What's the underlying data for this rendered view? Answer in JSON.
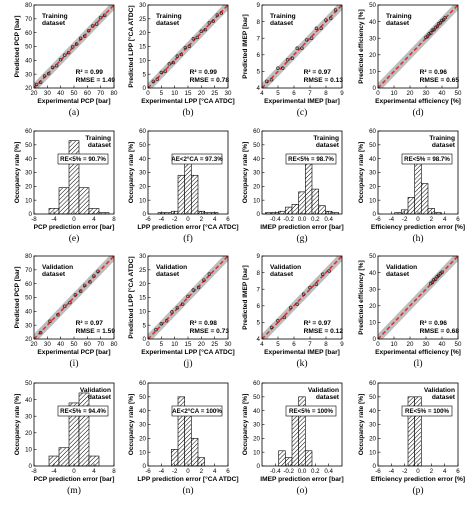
{
  "figure": {
    "labels": [
      "(a)",
      "(b)",
      "(c)",
      "(d)",
      "(e)",
      "(f)",
      "(g)",
      "(h)",
      "(i)",
      "(j)",
      "(k)",
      "(l)",
      "(m)",
      "(n)",
      "(o)",
      "(p)"
    ]
  },
  "colors": {
    "identity_line": "#e03030",
    "band": "#bdbdbd",
    "points": "#222222",
    "hatch": "#000000"
  },
  "chart_data": [
    {
      "id": "a",
      "type": "scatter",
      "xlabel": "Experimental PCP [bar]",
      "ylabel": "Predicted PCP [bar]",
      "xlim": [
        20,
        80
      ],
      "ylim": [
        20,
        80
      ],
      "ticks": [
        20,
        30,
        40,
        50,
        60,
        70,
        80
      ],
      "annotation": [
        "Training",
        "dataset"
      ],
      "stats": [
        "R² = 0.99",
        "RMSE = 1.49"
      ],
      "points": {
        "x": [
          22,
          25,
          28,
          31,
          34,
          37,
          40,
          43,
          46,
          49,
          52,
          55,
          58,
          61,
          64,
          67,
          70,
          73
        ],
        "y": [
          22.5,
          24.2,
          28.8,
          30.4,
          34.9,
          36.2,
          40.5,
          43.8,
          45.6,
          49.7,
          51.8,
          55.9,
          57.5,
          61.4,
          64.8,
          66.3,
          70.9,
          72.6
        ]
      },
      "identity": true
    },
    {
      "id": "b",
      "type": "scatter",
      "xlabel": "Experimental LPP [°CA ATDC]",
      "ylabel": "Predicted LPP [°CA ATDC]",
      "xlim": [
        0,
        30
      ],
      "ylim": [
        0,
        30
      ],
      "ticks": [
        0,
        5,
        10,
        15,
        20,
        25,
        30
      ],
      "annotation": [
        "Training",
        "dataset"
      ],
      "stats": [
        "R² = 0.99",
        "RMSE = 0.78"
      ],
      "points": {
        "x": [
          2,
          3.5,
          5,
          6.5,
          8,
          9.5,
          11,
          12.5,
          14,
          15.5,
          17,
          18.5,
          20,
          21.5,
          23,
          24.5,
          26,
          27.5
        ],
        "y": [
          2.4,
          3.2,
          5.6,
          6.1,
          8.7,
          9.2,
          11.5,
          12.1,
          14.6,
          15.1,
          17.8,
          18.3,
          20.5,
          21.1,
          23.6,
          24.2,
          26.4,
          27.1
        ]
      },
      "identity": true
    },
    {
      "id": "c",
      "type": "scatter",
      "xlabel": "Experimental IMEP [bar]",
      "ylabel": "Predicted IMEP [bar]",
      "xlim": [
        4,
        9
      ],
      "ylim": [
        4,
        9
      ],
      "ticks": [
        4,
        5,
        6,
        7,
        8,
        9
      ],
      "annotation": [
        "Training",
        "dataset"
      ],
      "stats": [
        "R² = 0.97",
        "RMSE = 0.13"
      ],
      "points": {
        "x": [
          4.3,
          4.6,
          5,
          5.3,
          5.6,
          5.9,
          6.2,
          6.5,
          6.8,
          7.1,
          7.4,
          7.7,
          8,
          8.3,
          8.6
        ],
        "y": [
          4.4,
          4.5,
          5.2,
          5.2,
          5.7,
          5.8,
          6.4,
          6.4,
          6.9,
          7,
          7.6,
          7.6,
          8.1,
          8.2,
          8.7
        ]
      },
      "identity": true
    },
    {
      "id": "d",
      "type": "scatter",
      "xlabel": "Experimental efficiency [%]",
      "ylabel": "Predicted efficiency [%]",
      "xlim": [
        0,
        50
      ],
      "ylim": [
        0,
        50
      ],
      "ticks": [
        0,
        10,
        20,
        30,
        40,
        50
      ],
      "annotation": [
        "Training",
        "dataset"
      ],
      "stats": [
        "R² = 0.96",
        "RMSE = 0.65"
      ],
      "points": {
        "x": [
          30,
          31,
          32,
          33,
          34,
          35,
          36,
          37,
          38,
          39,
          40,
          41,
          42
        ],
        "y": [
          30.5,
          31.2,
          32.6,
          33.1,
          34.8,
          35.2,
          36.4,
          37.1,
          38.7,
          39.3,
          40.6,
          41.2,
          42.4
        ]
      },
      "identity": true
    },
    {
      "id": "e",
      "type": "bar",
      "xlabel": "PCP prediction error [bar]",
      "ylabel": "Occupancy rate [%]",
      "xlim": [
        -8,
        8
      ],
      "ylim": [
        0,
        60
      ],
      "xticks": [
        -8,
        -4,
        0,
        4,
        8
      ],
      "yticks": [
        0,
        10,
        20,
        30,
        40,
        50,
        60
      ],
      "annotation": [
        "Training",
        "dataset"
      ],
      "stats": [
        "RE<5% = 90.7%"
      ],
      "bin_centers": [
        -6,
        -4,
        -2,
        0,
        2,
        4,
        6
      ],
      "values": [
        0,
        4,
        19,
        53,
        19,
        4,
        1
      ]
    },
    {
      "id": "f",
      "type": "bar",
      "xlabel": "LPP prediction error [°CA ATDC]",
      "ylabel": "Occupancy rate [%]",
      "xlim": [
        -6,
        6
      ],
      "ylim": [
        0,
        60
      ],
      "xticks": [
        -6,
        -4,
        -2,
        0,
        2,
        4,
        6
      ],
      "yticks": [
        0,
        10,
        20,
        30,
        40,
        50,
        60
      ],
      "annotation": [],
      "stats": [
        "AE<2°CA = 97.3%"
      ],
      "bin_centers": [
        -4,
        -3,
        -2,
        -1,
        0,
        1,
        2,
        3,
        4
      ],
      "values": [
        1,
        1,
        2,
        28,
        38,
        28,
        2,
        1,
        1
      ]
    },
    {
      "id": "g",
      "type": "bar",
      "xlabel": "IMEP prediction error [bar]",
      "ylabel": "Occupancy rate [%]",
      "xlim": [
        -0.6,
        0.6
      ],
      "ylim": [
        0,
        60
      ],
      "xticks": [
        -0.4,
        -0.2,
        0.0,
        0.2,
        0.4
      ],
      "yticks": [
        0,
        10,
        20,
        30,
        40,
        50,
        60
      ],
      "annotation": [
        "Training",
        "dataset"
      ],
      "stats": [
        "RE<5% = 98.7%"
      ],
      "bin_centers": [
        -0.5,
        -0.4,
        -0.3,
        -0.2,
        -0.1,
        0.0,
        0.1,
        0.2,
        0.3,
        0.4,
        0.5
      ],
      "values": [
        1,
        1,
        2,
        5,
        7,
        16,
        40,
        18,
        6,
        2,
        1
      ]
    },
    {
      "id": "h",
      "type": "bar",
      "xlabel": "Efficiency prediction error [%]",
      "ylabel": "Occupancy rate [%]",
      "xlim": [
        -6,
        6
      ],
      "ylim": [
        0,
        60
      ],
      "xticks": [
        -6,
        -4,
        -2,
        0,
        2,
        4,
        6
      ],
      "yticks": [
        0,
        10,
        20,
        30,
        40,
        50,
        60
      ],
      "annotation": [
        "Training",
        "dataset"
      ],
      "stats": [
        "RE<5% = 98.7%"
      ],
      "bin_centers": [
        -3,
        -2,
        -1,
        0,
        1,
        2,
        3
      ],
      "values": [
        1,
        3,
        12,
        39,
        22,
        4,
        1
      ]
    },
    {
      "id": "i",
      "type": "scatter",
      "xlabel": "Experimental PCP [bar]",
      "ylabel": "Predicted PCP [bar]",
      "xlim": [
        20,
        80
      ],
      "ylim": [
        20,
        80
      ],
      "ticks": [
        20,
        30,
        40,
        50,
        60,
        70,
        80
      ],
      "annotation": [
        "Validation",
        "dataset"
      ],
      "stats": [
        "R² = 0.97",
        "RMSE = 1.59"
      ],
      "points": {
        "x": [
          25,
          32,
          38,
          43,
          47,
          51,
          55,
          58,
          62,
          65,
          68
        ],
        "y": [
          24.6,
          32.8,
          37.5,
          43.7,
          46.3,
          51.9,
          54.6,
          58.8,
          61.3,
          65.5,
          68.9
        ]
      },
      "identity": true
    },
    {
      "id": "j",
      "type": "scatter",
      "xlabel": "Experimental LPP [°CA ATDC]",
      "ylabel": "Predicted LPP [°CA ATDC]",
      "xlim": [
        0,
        30
      ],
      "ylim": [
        0,
        30
      ],
      "ticks": [
        0,
        5,
        10,
        15,
        20,
        25,
        30
      ],
      "annotation": [
        "Validation",
        "dataset"
      ],
      "stats": [
        "R² = 0.98",
        "RMSE = 0.73"
      ],
      "points": {
        "x": [
          3,
          5,
          7,
          9,
          11,
          13,
          15,
          17,
          19,
          21,
          23
        ],
        "y": [
          3.4,
          5.5,
          6.6,
          9.8,
          11.3,
          12.6,
          15.4,
          17.7,
          18.6,
          21.3,
          23.5
        ]
      },
      "identity": true
    },
    {
      "id": "k",
      "type": "scatter",
      "xlabel": "Experimental IMEP [bar]",
      "ylabel": "Predicted IMEP [bar]",
      "xlim": [
        4,
        9
      ],
      "ylim": [
        4,
        9
      ],
      "ticks": [
        4,
        5,
        6,
        7,
        8,
        9
      ],
      "annotation": [
        "Validation",
        "dataset"
      ],
      "stats": [
        "R² = 0.97",
        "RMSE = 0.12"
      ],
      "points": {
        "x": [
          4.6,
          5,
          5.4,
          5.8,
          6.2,
          6.6,
          7,
          7.4,
          7.8,
          8.2
        ],
        "y": [
          4.7,
          5.1,
          5.3,
          5.9,
          6.1,
          6.7,
          7.1,
          7.3,
          7.9,
          8.1
        ]
      },
      "identity": true
    },
    {
      "id": "l",
      "type": "scatter",
      "xlabel": "Experimental efficiency [%]",
      "ylabel": "Predicted efficiency [%]",
      "xlim": [
        0,
        50
      ],
      "ylim": [
        0,
        50
      ],
      "ticks": [
        0,
        10,
        20,
        30,
        40,
        50
      ],
      "annotation": [
        "Validation",
        "dataset"
      ],
      "stats": [
        "R² = 0.96",
        "RMSE = 0.68"
      ],
      "points": {
        "x": [
          33,
          34,
          35,
          36,
          37,
          38,
          39,
          40
        ],
        "y": [
          33.4,
          34.2,
          35.6,
          36.1,
          37.5,
          38.3,
          39.4,
          40.2
        ]
      },
      "identity": true
    },
    {
      "id": "m",
      "type": "bar",
      "xlabel": "PCP prediction error [bar]",
      "ylabel": "Occupancy rate [%]",
      "xlim": [
        -8,
        8
      ],
      "ylim": [
        0,
        50
      ],
      "xticks": [
        -8,
        -4,
        0,
        4,
        8
      ],
      "yticks": [
        0,
        10,
        20,
        30,
        40,
        50
      ],
      "annotation": [
        "Validation",
        "dataset"
      ],
      "stats": [
        "RE<5% = 94.4%"
      ],
      "bin_centers": [
        -4,
        -2,
        0,
        2,
        4
      ],
      "values": [
        6,
        11,
        38,
        44,
        6
      ]
    },
    {
      "id": "n",
      "type": "bar",
      "xlabel": "LPP prediction error [°CA ATDC]",
      "ylabel": "Occupancy rate [%]",
      "xlim": [
        -6,
        6
      ],
      "ylim": [
        0,
        60
      ],
      "xticks": [
        -6,
        -4,
        -2,
        0,
        2,
        4,
        6
      ],
      "yticks": [
        0,
        10,
        20,
        30,
        40,
        50,
        60
      ],
      "annotation": [],
      "stats": [
        "AE<2°CA = 100%"
      ],
      "bin_centers": [
        -2,
        -1,
        0,
        1,
        2
      ],
      "values": [
        12,
        50,
        38,
        20,
        6
      ]
    },
    {
      "id": "o",
      "type": "bar",
      "xlabel": "IMEP prediction error [bar]",
      "ylabel": "Occupancy rate [%]",
      "xlim": [
        -0.6,
        0.6
      ],
      "ylim": [
        0,
        60
      ],
      "xticks": [
        -0.4,
        -0.2,
        0.0,
        0.2,
        0.4
      ],
      "yticks": [
        0,
        10,
        20,
        30,
        40,
        50,
        60
      ],
      "annotation": [
        "Validation",
        "dataset"
      ],
      "stats": [
        "RE<5% = 100%"
      ],
      "bin_centers": [
        -0.3,
        -0.2,
        -0.1,
        0.0,
        0.1
      ],
      "values": [
        11,
        6,
        38,
        50,
        11
      ]
    },
    {
      "id": "p",
      "type": "bar",
      "xlabel": "Efficiency prediction error [%]",
      "ylabel": "Occupancy rate [%]",
      "xlim": [
        -6,
        6
      ],
      "ylim": [
        0,
        60
      ],
      "xticks": [
        -6,
        -4,
        -2,
        0,
        2,
        4,
        6
      ],
      "yticks": [
        0,
        10,
        20,
        30,
        40,
        50,
        60
      ],
      "annotation": [
        "Validation",
        "dataset"
      ],
      "stats": [
        "RE<5% = 100%"
      ],
      "bin_centers": [
        -1,
        0
      ],
      "values": [
        50,
        50
      ]
    }
  ]
}
